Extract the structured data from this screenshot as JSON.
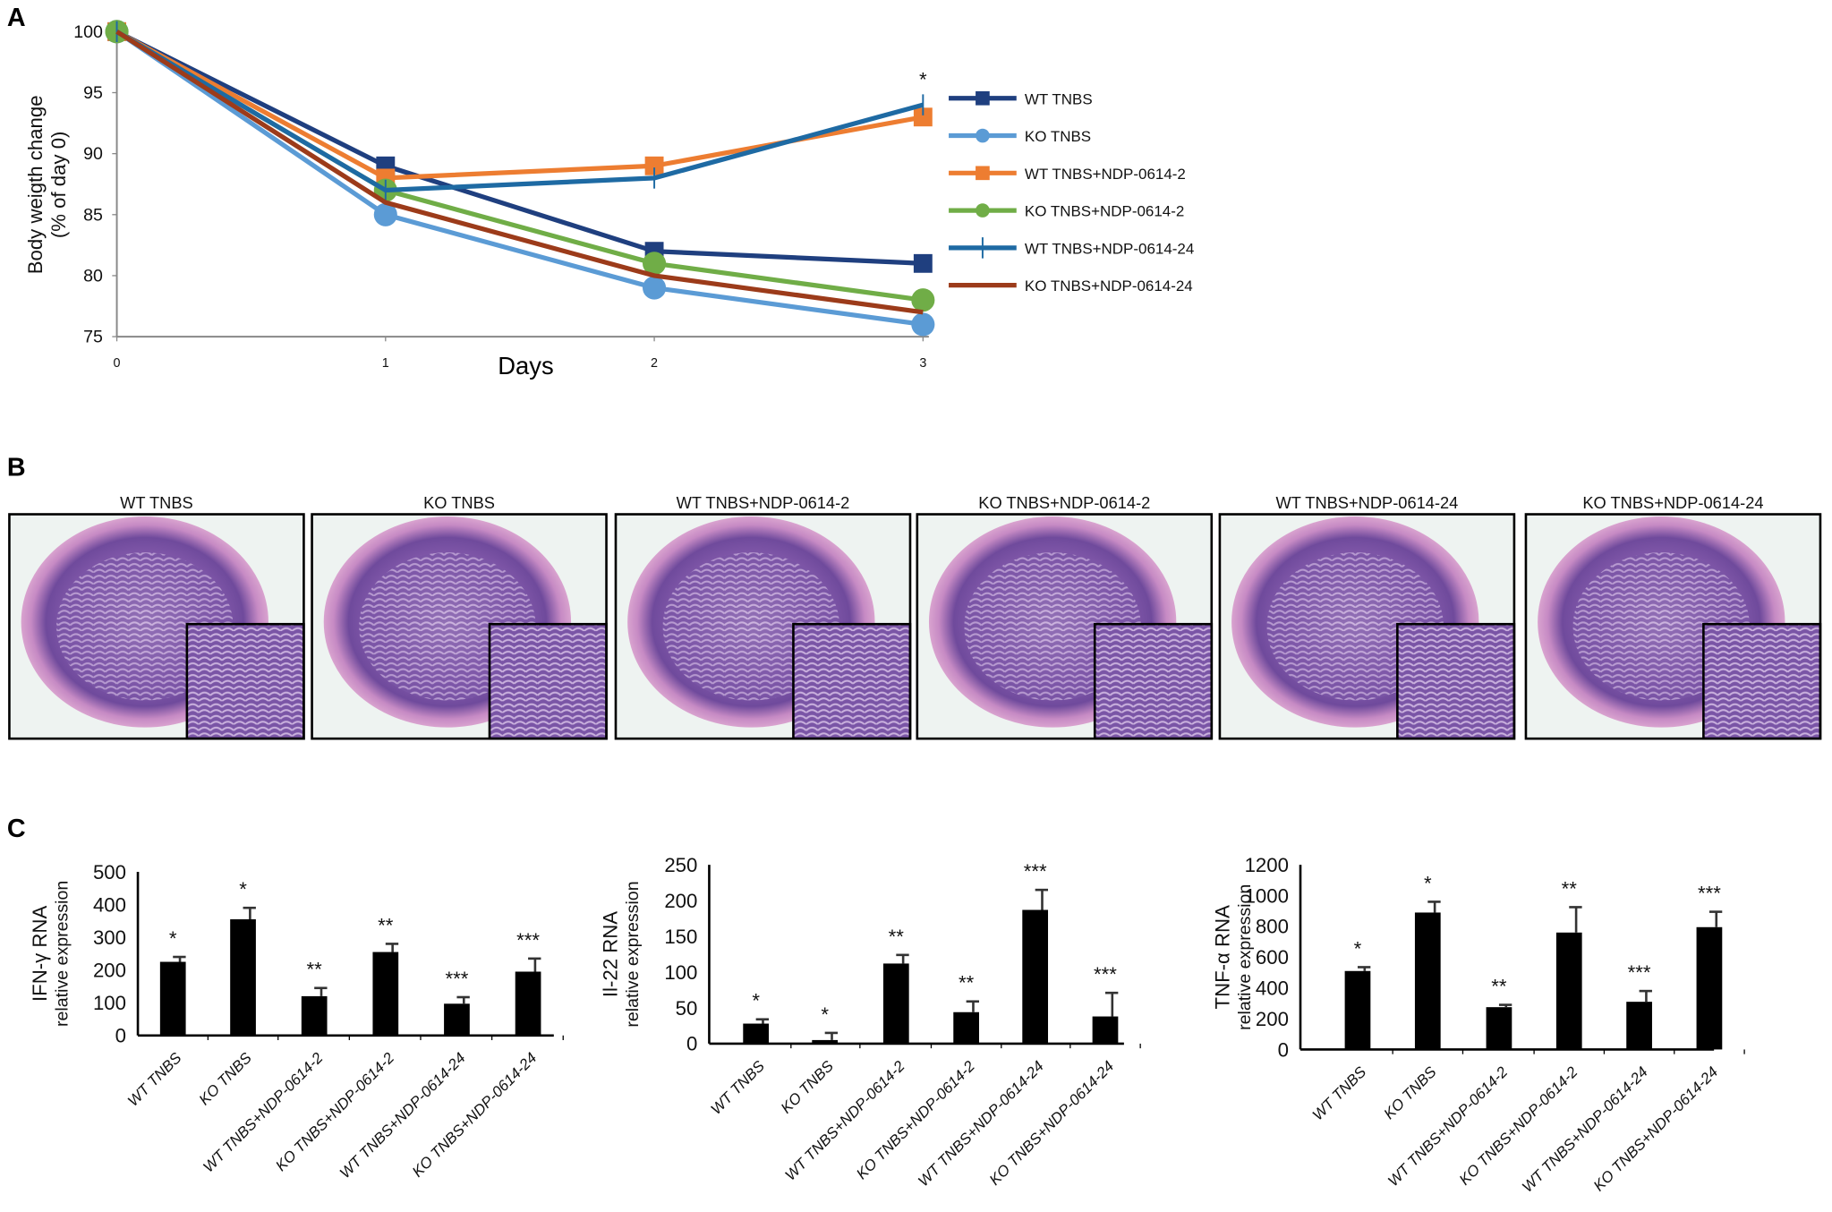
{
  "panels": {
    "a": "A",
    "b": "B",
    "c": "C"
  },
  "chart_data": [
    {
      "type": "line",
      "title": "",
      "xlabel": "Days",
      "ylabel_line1": "Body weigth change",
      "ylabel_line2": "(% of day 0)",
      "x": [
        0,
        1,
        2,
        3
      ],
      "xticks": [
        "0",
        "1",
        "2",
        "3"
      ],
      "yticks": [
        "75",
        "80",
        "85",
        "90",
        "95",
        "100"
      ],
      "ylim": [
        75,
        100
      ],
      "legend_position": "right",
      "annotation": "*",
      "series": [
        {
          "name": "WT TNBS",
          "values": [
            100,
            89,
            82,
            81
          ],
          "color": "#1f3f7f",
          "marker": "square"
        },
        {
          "name": "KO TNBS",
          "values": [
            100,
            85,
            79,
            76
          ],
          "color": "#5b9bd5",
          "marker": "circle"
        },
        {
          "name": "WT TNBS+NDP-0614-2",
          "values": [
            100,
            88,
            89,
            93
          ],
          "color": "#ed7d31",
          "marker": "square"
        },
        {
          "name": "KO TNBS+NDP-0614-2",
          "values": [
            100,
            87,
            81,
            78
          ],
          "color": "#70ad47",
          "marker": "circle"
        },
        {
          "name": "WT TNBS+NDP-0614-24",
          "values": [
            100,
            87,
            88,
            94
          ],
          "color": "#1e6aa3",
          "marker": "plus"
        },
        {
          "name": "KO TNBS+NDP-0614-24",
          "values": [
            100,
            86,
            80,
            77
          ],
          "color": "#9c3b1a",
          "marker": "none"
        }
      ]
    },
    {
      "type": "bar",
      "ylabel_line1": "IFN-γ RNA",
      "ylabel_line2": "relative expression",
      "categories": [
        "WT TNBS",
        "KO TNBS",
        "WT TNBS+NDP-0614-2",
        "KO TNBS+NDP-0614-2",
        "WT TNBS+NDP-0614-24",
        "KO TNBS+NDP-0614-24"
      ],
      "values": [
        225,
        355,
        120,
        255,
        97,
        195
      ],
      "errors": [
        15,
        35,
        25,
        25,
        20,
        40
      ],
      "significance": [
        "*",
        "*",
        "**",
        "**",
        "***",
        "***"
      ],
      "yticks": [
        "0",
        "100",
        "200",
        "300",
        "400",
        "500"
      ],
      "ylim": [
        0,
        500
      ]
    },
    {
      "type": "bar",
      "ylabel_line1": "Il-22 RNA",
      "ylabel_line2": "relative expression",
      "categories": [
        "WT TNBS",
        "KO TNBS",
        "WT TNBS+NDP-0614-2",
        "KO TNBS+NDP-0614-2",
        "WT TNBS+NDP-0614-24",
        "KO TNBS+NDP-0614-24"
      ],
      "values": [
        28,
        5,
        112,
        44,
        187,
        38
      ],
      "errors": [
        6,
        10,
        12,
        15,
        28,
        33
      ],
      "significance": [
        "*",
        "*",
        "**",
        "**",
        "***",
        "***"
      ],
      "yticks": [
        "0",
        "50",
        "100",
        "150",
        "200",
        "250"
      ],
      "ylim": [
        0,
        250
      ]
    },
    {
      "type": "bar",
      "ylabel_line1": "TNF-α RNA",
      "ylabel_line2": "relative expression",
      "categories": [
        "WT TNBS",
        "KO TNBS",
        "WT TNBS+NDP-0614-2",
        "KO TNBS+NDP-0614-2",
        "WT TNBS+NDP-0614-24",
        "KO TNBS+NDP-0614-24"
      ],
      "values": [
        510,
        890,
        275,
        760,
        310,
        795
      ],
      "errors": [
        25,
        70,
        15,
        165,
        70,
        100
      ],
      "significance": [
        "*",
        "*",
        "**",
        "**",
        "***",
        "***"
      ],
      "yticks": [
        "0",
        "200",
        "400",
        "600",
        "800",
        "1000",
        "1200"
      ],
      "ylim": [
        0,
        1200
      ]
    }
  ],
  "histology": {
    "titles": [
      "WT TNBS",
      "KO TNBS",
      "WT TNBS+NDP-0614-2",
      "KO TNBS+NDP-0614-2",
      "WT TNBS+NDP-0614-24",
      "KO TNBS+NDP-0614-24"
    ]
  }
}
